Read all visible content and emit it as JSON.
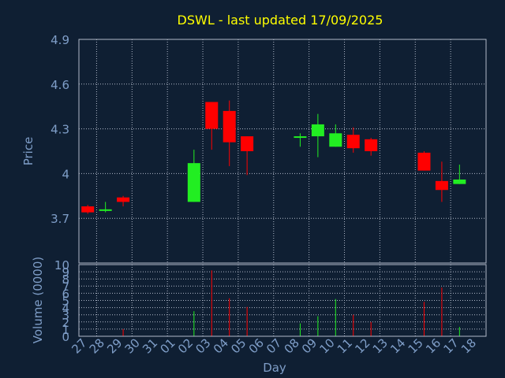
{
  "chart_data": {
    "type": "candlestick",
    "title": "DSWL - last updated 17/09/2025",
    "ylabel": "Price",
    "volume_ylabel": "Volume (0000)",
    "xlabel": "Day",
    "ylim": [
      3.4,
      4.9
    ],
    "volume_ylim": [
      0,
      10
    ],
    "yticks": [
      "4.9",
      "4.6",
      "4.3",
      "4",
      "3.7"
    ],
    "volume_yticks": [
      "10",
      "9",
      "8",
      "7",
      "6",
      "5",
      "4",
      "3",
      "2",
      "1",
      "0"
    ],
    "grid": true,
    "x_labels": [
      "27",
      "28",
      "29",
      "30",
      "31",
      "01",
      "02",
      "03",
      "04",
      "05",
      "06",
      "07",
      "08",
      "09",
      "10",
      "11",
      "12",
      "13",
      "14",
      "15",
      "16",
      "17",
      "18"
    ],
    "candles": [
      {
        "x": 0,
        "open": 3.78,
        "close": 3.74,
        "high": 3.79,
        "low": 3.73,
        "volume": 0
      },
      {
        "x": 1,
        "open": 3.75,
        "close": 3.76,
        "high": 3.81,
        "low": 3.74,
        "volume": 0
      },
      {
        "x": 2,
        "open": 3.84,
        "close": 3.81,
        "high": 3.85,
        "low": 3.78,
        "volume": 1
      },
      {
        "x": 6,
        "open": 3.81,
        "close": 4.07,
        "high": 4.16,
        "low": 3.81,
        "volume": 3.5
      },
      {
        "x": 7,
        "open": 4.48,
        "close": 4.3,
        "high": 4.48,
        "low": 4.16,
        "volume": 9.2
      },
      {
        "x": 8,
        "open": 4.42,
        "close": 4.21,
        "high": 4.49,
        "low": 4.05,
        "volume": 5.3
      },
      {
        "x": 9,
        "open": 4.25,
        "close": 4.15,
        "high": 4.25,
        "low": 3.99,
        "volume": 4.1
      },
      {
        "x": 12,
        "open": 4.24,
        "close": 4.25,
        "high": 4.27,
        "low": 4.18,
        "volume": 1.8
      },
      {
        "x": 13,
        "open": 4.25,
        "close": 4.33,
        "high": 4.4,
        "low": 4.11,
        "volume": 2.8
      },
      {
        "x": 14,
        "open": 4.18,
        "close": 4.27,
        "high": 4.33,
        "low": 4.18,
        "volume": 5.2
      },
      {
        "x": 15,
        "open": 4.26,
        "close": 4.17,
        "high": 4.31,
        "low": 4.14,
        "volume": 3.0
      },
      {
        "x": 16,
        "open": 4.23,
        "close": 4.15,
        "high": 4.24,
        "low": 4.12,
        "volume": 2.0
      },
      {
        "x": 19,
        "open": 4.14,
        "close": 4.02,
        "high": 4.15,
        "low": 4.02,
        "volume": 4.8
      },
      {
        "x": 20,
        "open": 3.95,
        "close": 3.89,
        "high": 4.08,
        "low": 3.81,
        "volume": 6.8
      },
      {
        "x": 21,
        "open": 3.93,
        "close": 3.96,
        "high": 4.06,
        "low": 3.93,
        "volume": 1.3
      }
    ]
  },
  "colors": {
    "background": "#0f1f33",
    "up": "#22ee22",
    "down": "#ff0000",
    "grid": "#b0b8c8",
    "axis_text": "#7f9ec8",
    "title": "#ffff00",
    "label_text": "#7f9ec8"
  }
}
